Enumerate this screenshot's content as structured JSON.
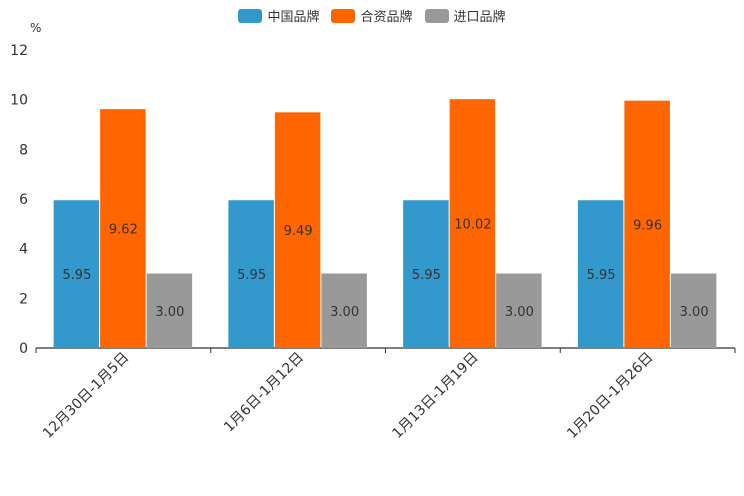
{
  "chart_data": {
    "type": "bar",
    "unit_label": "%",
    "categories": [
      "12月30日-1月5日",
      "1月6日-1月12日",
      "1月13日-1月19日",
      "1月20日-1月26日"
    ],
    "series": [
      {
        "name": "中国品牌",
        "color": "#3399cc",
        "values": [
          5.95,
          5.95,
          5.95,
          5.95
        ]
      },
      {
        "name": "合资品牌",
        "color": "#ff6600",
        "values": [
          9.62,
          9.49,
          10.02,
          9.96
        ]
      },
      {
        "name": "进口品牌",
        "color": "#999999",
        "values": [
          3.0,
          3.0,
          3.0,
          3.0
        ]
      }
    ],
    "ylim": [
      0,
      12
    ],
    "yticks": [
      0,
      2,
      4,
      6,
      8,
      10,
      12
    ],
    "legend_position": "top-center",
    "grid": false
  }
}
